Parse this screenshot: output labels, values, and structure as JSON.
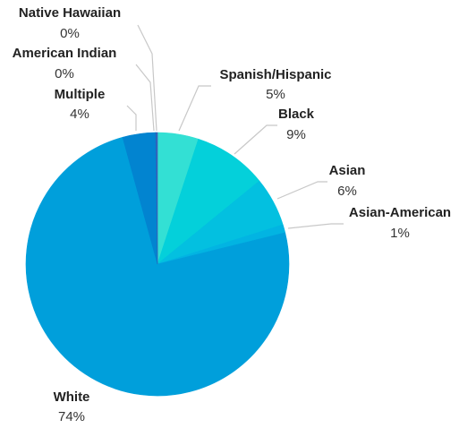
{
  "chart_data": {
    "type": "pie",
    "title": "",
    "unit": "%",
    "slices": [
      {
        "label": "Spanish/Hispanic",
        "value": 5,
        "value_label": "5%",
        "color": "#33E0D4"
      },
      {
        "label": "Black",
        "value": 9,
        "value_label": "9%",
        "color": "#04D0DA"
      },
      {
        "label": "Asian",
        "value": 6,
        "value_label": "6%",
        "color": "#03C0E0"
      },
      {
        "label": "Asian-American",
        "value": 1,
        "value_label": "1%",
        "color": "#02B4E2"
      },
      {
        "label": "White",
        "value": 74,
        "value_label": "74%",
        "color": "#009FDB"
      },
      {
        "label": "Multiple",
        "value": 4,
        "value_label": "4%",
        "color": "#0284D0"
      },
      {
        "label": "American Indian",
        "value": 0,
        "value_label": "0%",
        "color": "#1A6FC4"
      },
      {
        "label": "Native Hawaiian",
        "value": 0,
        "value_label": "0%",
        "color": "#3C5DB8"
      }
    ],
    "start_angle": "12 o'clock",
    "direction": "clockwise",
    "legend": "none",
    "label_style": "outside with leader lines"
  }
}
